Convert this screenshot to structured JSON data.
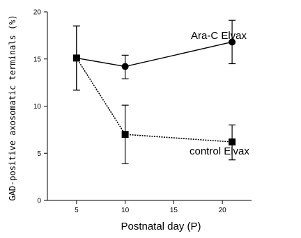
{
  "chart_data": {
    "type": "line",
    "xlabel": "Postnatal day (P)",
    "ylabel": "GAD-positive axosomatic terminals (%)",
    "xlim": [
      2,
      23
    ],
    "ylim": [
      0,
      20
    ],
    "xticks": [
      5,
      10,
      15,
      20
    ],
    "yticks": [
      0,
      5,
      10,
      15,
      20
    ],
    "series": [
      {
        "name": "Ara-C Elvax",
        "marker": "circle",
        "line": "solid",
        "points": [
          {
            "x": 5,
            "y": 15.1,
            "err_low": 11.7,
            "err_high": 18.5
          },
          {
            "x": 10,
            "y": 14.2,
            "err_low": 12.9,
            "err_high": 15.4
          },
          {
            "x": 21,
            "y": 16.8,
            "err_low": 14.5,
            "err_high": 19.1
          }
        ]
      },
      {
        "name": "control Elvax",
        "marker": "square",
        "line": "dotted",
        "points": [
          {
            "x": 5,
            "y": 15.1,
            "err_low": 11.7,
            "err_high": 18.5
          },
          {
            "x": 10,
            "y": 7.0,
            "err_low": 3.9,
            "err_high": 10.1
          },
          {
            "x": 21,
            "y": 6.2,
            "err_low": 4.3,
            "err_high": 8.0
          }
        ]
      }
    ],
    "colors": {
      "line": "#000000",
      "marker": "#000000"
    }
  }
}
